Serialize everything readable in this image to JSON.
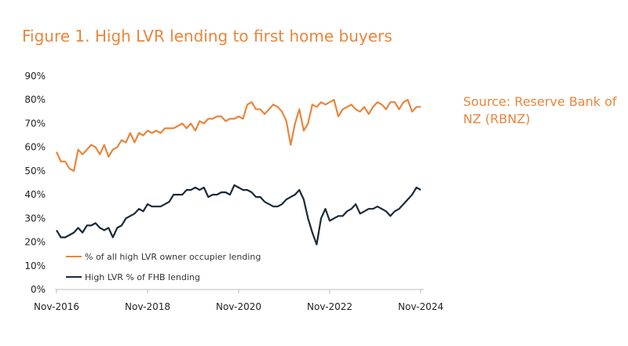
{
  "title": "Figure 1. High LVR lending to first home buyers",
  "source": "Source: Reserve Bank of NZ (RBNZ)",
  "chart_data": {
    "type": "line",
    "x_tick_labels": [
      "Nov-2016",
      "Nov-2018",
      "Nov-2020",
      "Nov-2022",
      "Nov-2024"
    ],
    "y_tick_labels": [
      "0%",
      "10%",
      "20%",
      "30%",
      "40%",
      "50%",
      "60%",
      "70%",
      "80%",
      "90%"
    ],
    "ylim": [
      0,
      90
    ],
    "xlabel": "",
    "ylabel": "",
    "grid": false,
    "legend_position": "bottom-left",
    "colors": {
      "series1": "#e8863c",
      "series2": "#1b2a38"
    },
    "series": [
      {
        "name": "% of all high LVR owner occupier lending",
        "values": [
          58,
          54,
          54,
          51,
          50,
          59,
          57,
          59,
          61,
          60,
          57,
          61,
          56,
          59,
          60,
          63,
          62,
          66,
          62,
          66,
          65,
          67,
          66,
          67,
          66,
          68,
          68,
          68,
          69,
          70,
          68,
          70,
          67,
          71,
          70,
          72,
          72,
          73,
          73,
          71,
          72,
          72,
          73,
          72,
          78,
          79,
          76,
          76,
          74,
          76,
          78,
          77,
          75,
          71,
          61,
          70,
          76,
          67,
          70,
          78,
          77,
          79,
          78,
          79,
          80,
          73,
          76,
          77,
          78,
          76,
          75,
          77,
          74,
          77,
          79,
          78,
          76,
          79,
          79,
          76,
          79,
          80,
          75,
          77,
          77
        ]
      },
      {
        "name": "High LVR % of FHB lending",
        "values": [
          25,
          22,
          22,
          23,
          24,
          26,
          24,
          27,
          27,
          28,
          26,
          25,
          26,
          22,
          26,
          27,
          30,
          31,
          32,
          34,
          33,
          36,
          35,
          35,
          35,
          36,
          37,
          40,
          40,
          40,
          42,
          42,
          43,
          42,
          43,
          39,
          40,
          40,
          41,
          41,
          40,
          44,
          43,
          42,
          42,
          41,
          39,
          39,
          37,
          36,
          35,
          35,
          36,
          38,
          39,
          40,
          42,
          38,
          30,
          24,
          19,
          30,
          34,
          29,
          30,
          31,
          31,
          33,
          34,
          36,
          32,
          33,
          34,
          34,
          35,
          34,
          33,
          31,
          33,
          34,
          36,
          38,
          40,
          43,
          42
        ]
      }
    ]
  }
}
